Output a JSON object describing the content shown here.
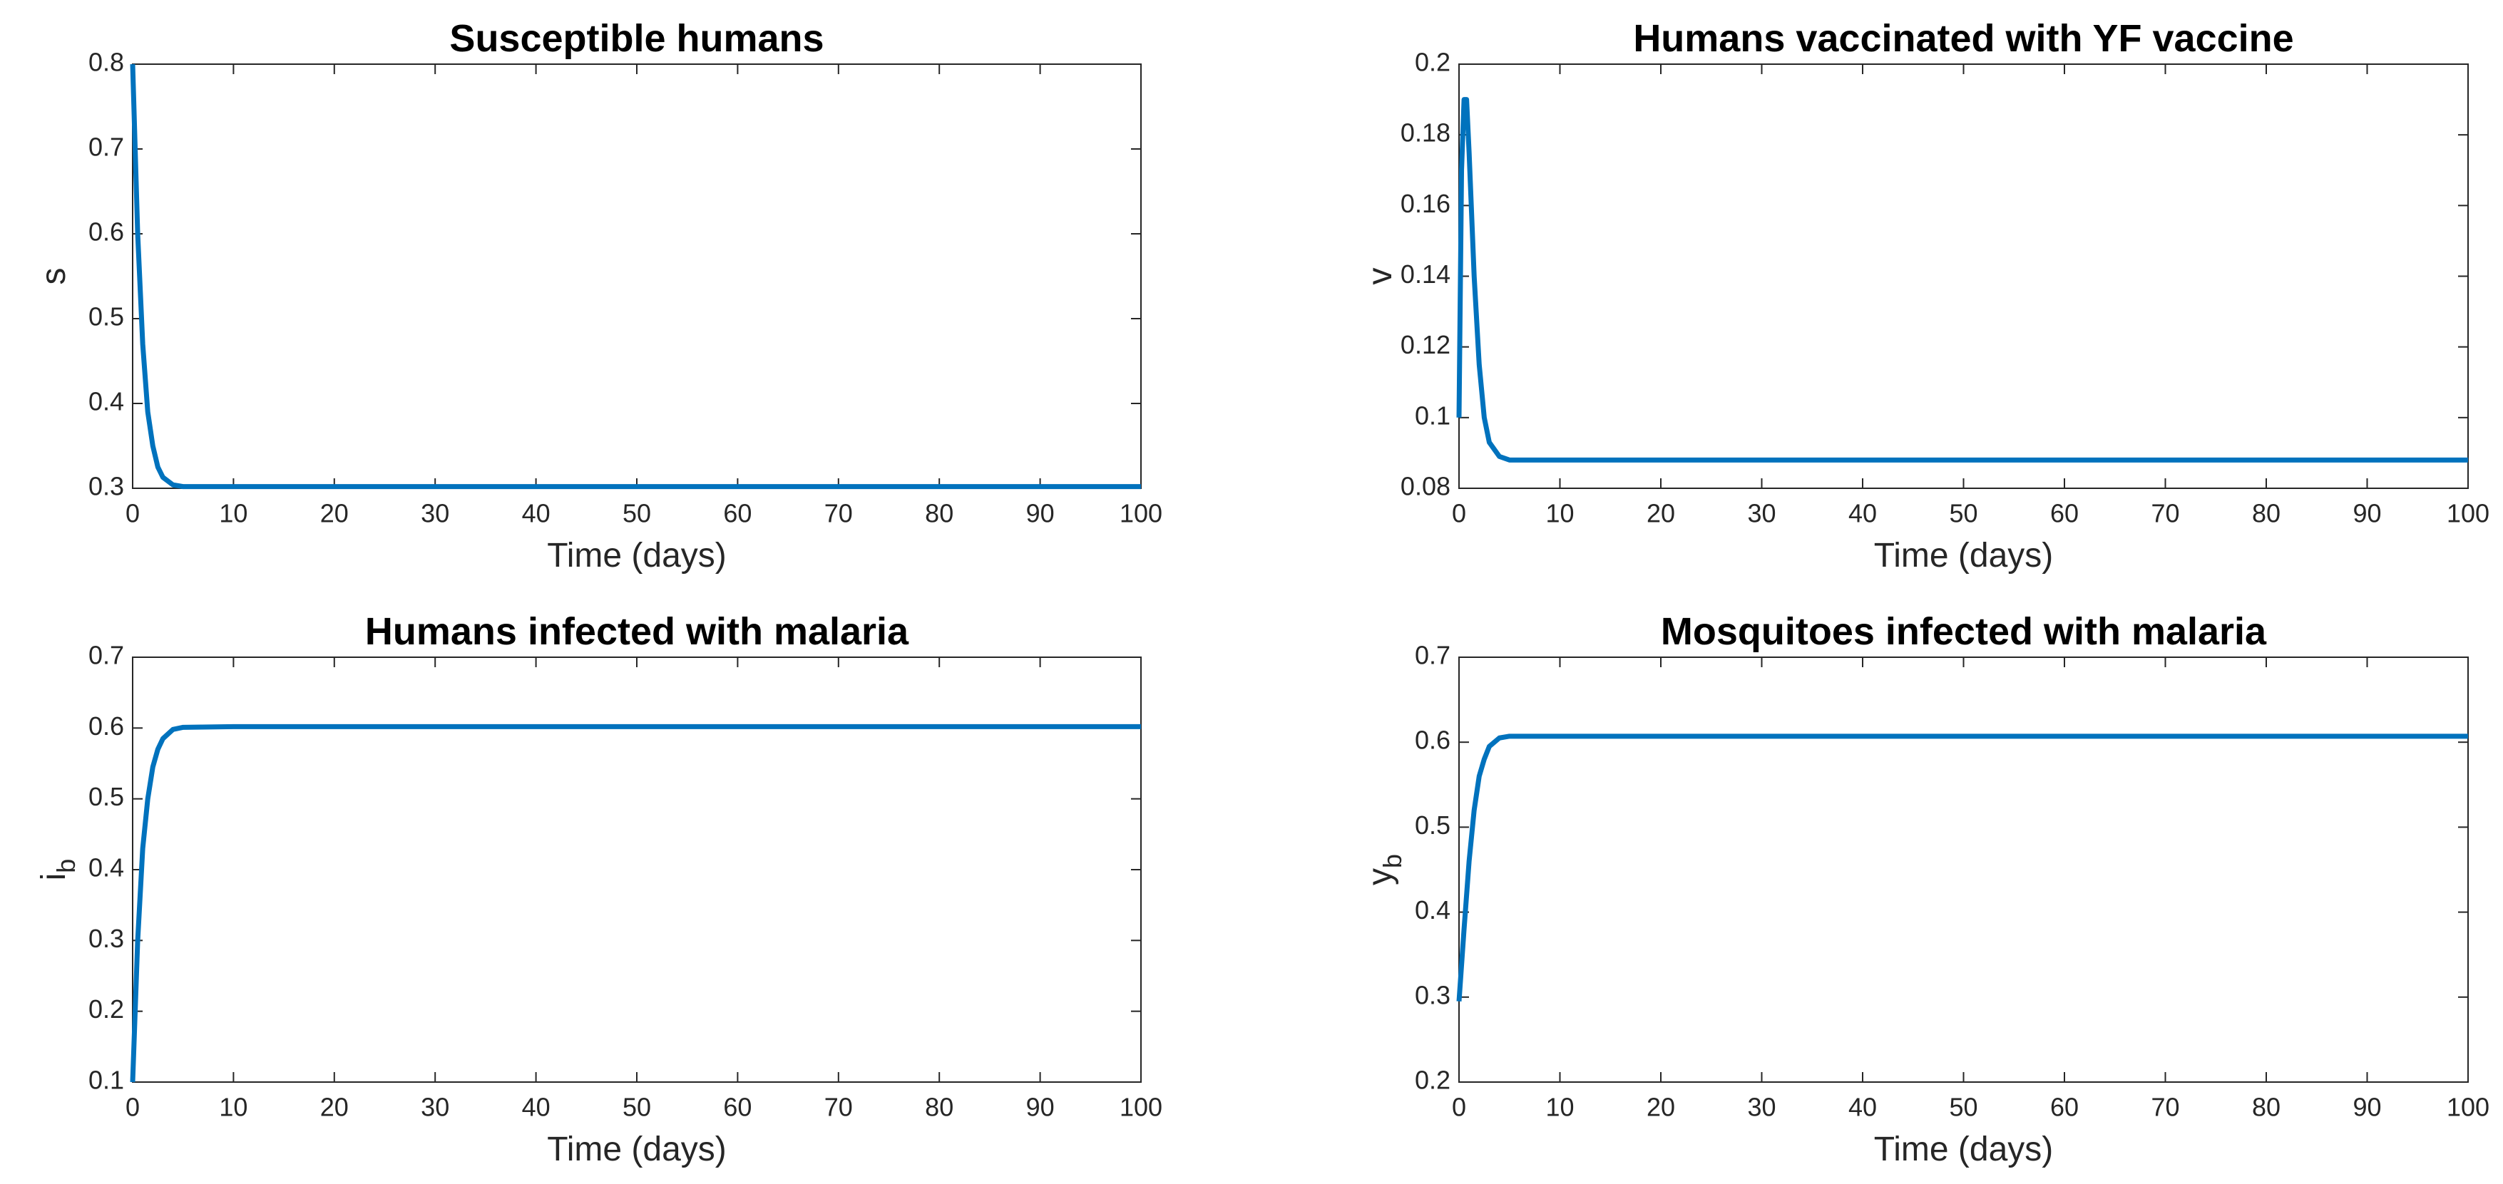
{
  "chart_data": [
    {
      "type": "line",
      "title": "Susceptible humans",
      "xlabel": "Time (days)",
      "ylabel": "s",
      "x": [
        0,
        0.5,
        1,
        1.5,
        2,
        2.5,
        3,
        4,
        5,
        10,
        50,
        100
      ],
      "series": [
        {
          "color": "#0072BD",
          "values": [
            0.8,
            0.6,
            0.47,
            0.39,
            0.35,
            0.325,
            0.313,
            0.304,
            0.302,
            0.302,
            0.302,
            0.302
          ]
        }
      ],
      "xlim": [
        0,
        100
      ],
      "xticks": [
        0,
        10,
        20,
        30,
        40,
        50,
        60,
        70,
        80,
        90,
        100
      ],
      "ylim": [
        0.3,
        0.8
      ],
      "yticks": [
        0.3,
        0.4,
        0.5,
        0.6,
        0.7,
        0.8
      ]
    },
    {
      "type": "line",
      "title": "Humans vaccinated with YF vaccine",
      "xlabel": "Time (days)",
      "ylabel": "v",
      "x": [
        0,
        0.25,
        0.5,
        0.75,
        1,
        1.5,
        2,
        2.5,
        3,
        4,
        5,
        10,
        100
      ],
      "series": [
        {
          "color": "#0072BD",
          "values": [
            0.1,
            0.17,
            0.19,
            0.19,
            0.175,
            0.14,
            0.115,
            0.1,
            0.093,
            0.089,
            0.088,
            0.088,
            0.088
          ]
        }
      ],
      "xlim": [
        0,
        100
      ],
      "xticks": [
        0,
        10,
        20,
        30,
        40,
        50,
        60,
        70,
        80,
        90,
        100
      ],
      "ylim": [
        0.08,
        0.2
      ],
      "yticks": [
        0.08,
        0.1,
        0.12,
        0.14,
        0.16,
        0.18,
        0.2
      ]
    },
    {
      "type": "line",
      "title": "Humans infected with malaria",
      "xlabel": "Time (days)",
      "ylabel": "i",
      "ylabel_subscript": "b",
      "x": [
        0,
        0.5,
        1,
        1.5,
        2,
        2.5,
        3,
        4,
        5,
        10,
        100
      ],
      "series": [
        {
          "color": "#0072BD",
          "values": [
            0.1,
            0.3,
            0.43,
            0.5,
            0.545,
            0.57,
            0.585,
            0.598,
            0.601,
            0.602,
            0.602
          ]
        }
      ],
      "xlim": [
        0,
        100
      ],
      "xticks": [
        0,
        10,
        20,
        30,
        40,
        50,
        60,
        70,
        80,
        90,
        100
      ],
      "ylim": [
        0.1,
        0.7
      ],
      "yticks": [
        0.1,
        0.2,
        0.3,
        0.4,
        0.5,
        0.6,
        0.7
      ]
    },
    {
      "type": "line",
      "title": "Mosquitoes infected with malaria",
      "xlabel": "Time (days)",
      "ylabel": "y",
      "ylabel_subscript": "b",
      "x": [
        0,
        0.5,
        1,
        1.5,
        2,
        2.5,
        3,
        4,
        5,
        10,
        100
      ],
      "series": [
        {
          "color": "#0072BD",
          "values": [
            0.295,
            0.38,
            0.46,
            0.52,
            0.56,
            0.58,
            0.595,
            0.605,
            0.607,
            0.607,
            0.607
          ]
        }
      ],
      "xlim": [
        0,
        100
      ],
      "xticks": [
        0,
        10,
        20,
        30,
        40,
        50,
        60,
        70,
        80,
        90,
        100
      ],
      "ylim": [
        0.2,
        0.7
      ],
      "yticks": [
        0.2,
        0.3,
        0.4,
        0.5,
        0.6,
        0.7
      ]
    }
  ]
}
